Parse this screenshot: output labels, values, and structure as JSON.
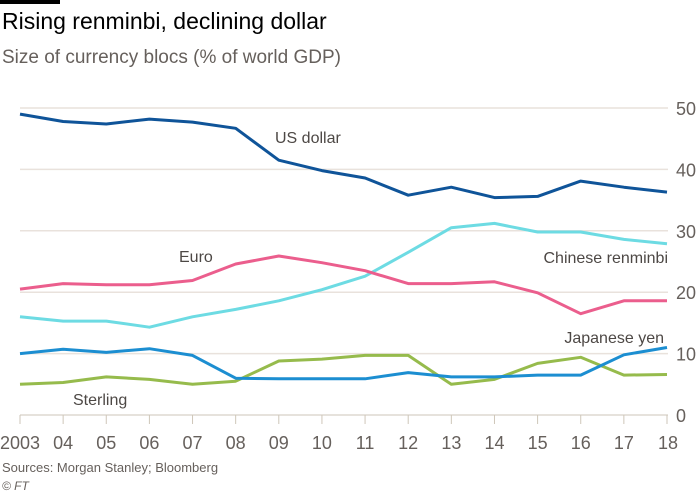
{
  "chart_data": {
    "type": "line",
    "title": "Rising renminbi, declining dollar",
    "subtitle": "Size of currency blocs (% of world GDP)",
    "xlabel": "",
    "ylabel": "",
    "x_tick_labels": [
      "2003",
      "04",
      "05",
      "06",
      "07",
      "08",
      "09",
      "10",
      "11",
      "12",
      "13",
      "14",
      "15",
      "16",
      "17",
      "18"
    ],
    "x": [
      2003,
      2004,
      2005,
      2006,
      2007,
      2008,
      2009,
      2010,
      2011,
      2012,
      2013,
      2014,
      2015,
      2016,
      2017,
      2018
    ],
    "ylim": [
      0,
      50
    ],
    "y_ticks": [
      0,
      10,
      20,
      30,
      40,
      50
    ],
    "grid": true,
    "series": [
      {
        "name": "US dollar",
        "color": "#0f5499",
        "values": [
          49,
          47.8,
          47.4,
          48.2,
          47.7,
          46.7,
          41.5,
          39.8,
          38.6,
          35.8,
          37.1,
          35.4,
          35.6,
          38.1,
          37.1,
          36.3
        ]
      },
      {
        "name": "Chinese renminbi",
        "color": "#6ddbe3",
        "values": [
          16,
          15.3,
          15.3,
          14.3,
          16,
          17.2,
          18.6,
          20.4,
          22.6,
          26.5,
          30.5,
          31.2,
          29.8,
          29.8,
          28.6,
          27.9
        ]
      },
      {
        "name": "Euro",
        "color": "#eb5e8d",
        "values": [
          20.5,
          21.4,
          21.2,
          21.2,
          21.9,
          24.6,
          25.9,
          24.8,
          23.5,
          21.4,
          21.4,
          21.7,
          19.9,
          16.5,
          18.6,
          18.6
        ]
      },
      {
        "name": "Japanese yen",
        "color": "#1c8ed1",
        "values": [
          10,
          10.7,
          10.2,
          10.8,
          9.7,
          6,
          5.9,
          5.9,
          5.9,
          6.9,
          6.2,
          6.2,
          6.5,
          6.5,
          9.8,
          11
        ]
      },
      {
        "name": "Sterling",
        "color": "#96bb4c",
        "values": [
          5,
          5.3,
          6.2,
          5.8,
          5,
          5.5,
          8.8,
          9.1,
          9.7,
          9.7,
          5,
          5.8,
          8.4,
          9.4,
          6.5,
          6.6
        ]
      }
    ]
  },
  "footer": {
    "source": "Sources: Morgan Stanley; Bloomberg",
    "copyright": "© FT"
  }
}
